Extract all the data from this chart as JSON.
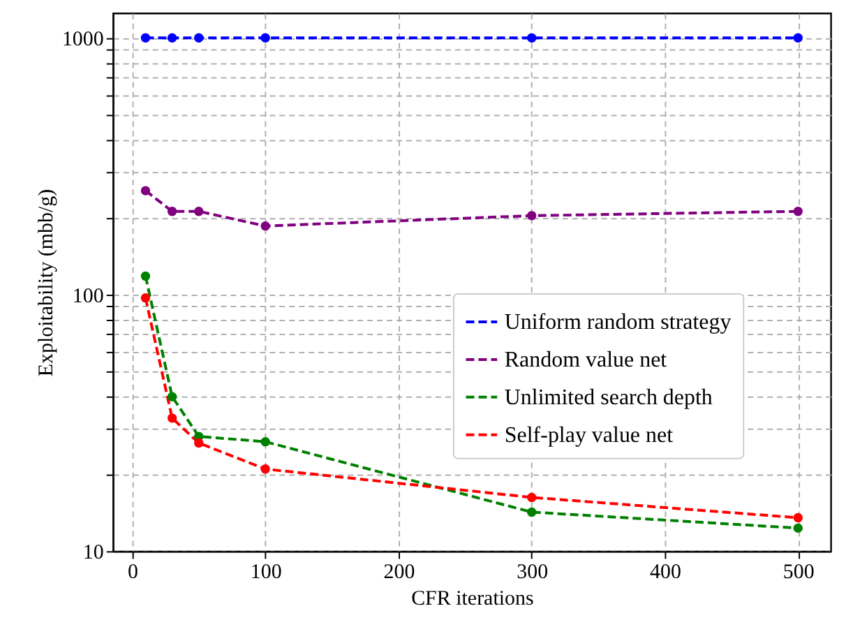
{
  "chart_data": {
    "type": "line",
    "xlabel": "CFR iterations",
    "ylabel": "Exploitability (mbb/g)",
    "x": [
      10,
      30,
      50,
      100,
      300,
      500
    ],
    "series": [
      {
        "name": "Uniform random strategy",
        "color": "#0000ff",
        "values": [
          1000,
          1000,
          1000,
          1000,
          1000,
          1000
        ]
      },
      {
        "name": "Random value net",
        "color": "#800080",
        "values": [
          254,
          211,
          211,
          185,
          203,
          211
        ]
      },
      {
        "name": "Unlimited search depth",
        "color": "#008000",
        "values": [
          118,
          40,
          28,
          26.7,
          14.2,
          12.3
        ]
      },
      {
        "name": "Self-play value net",
        "color": "#ff0000",
        "values": [
          97,
          33,
          26.4,
          20.9,
          16.2,
          13.5
        ]
      }
    ],
    "log": "y",
    "xlim": [
      -14.5,
      524.5
    ],
    "ylim": [
      10,
      1250
    ],
    "xticks": [
      0,
      100,
      200,
      300,
      400,
      500
    ],
    "yticks": [
      10,
      {
        "value": 20,
        "label": null
      },
      {
        "value": 30,
        "label": null
      },
      {
        "value": 40,
        "label": null
      },
      {
        "value": 50,
        "label": null
      },
      {
        "value": 60,
        "label": null
      },
      {
        "value": 70,
        "label": null
      },
      {
        "value": 80,
        "label": null
      },
      {
        "value": 90,
        "label": null
      },
      100,
      {
        "value": 200,
        "label": null
      },
      {
        "value": 300,
        "label": null
      },
      {
        "value": 400,
        "label": null
      },
      {
        "value": 500,
        "label": null
      },
      {
        "value": 600,
        "label": null
      },
      {
        "value": 700,
        "label": null
      },
      {
        "value": 800,
        "label": null
      },
      {
        "value": 900,
        "label": null
      },
      1000
    ],
    "grid": true,
    "legend": "right",
    "marker": "circle",
    "line_style": "dashed"
  }
}
